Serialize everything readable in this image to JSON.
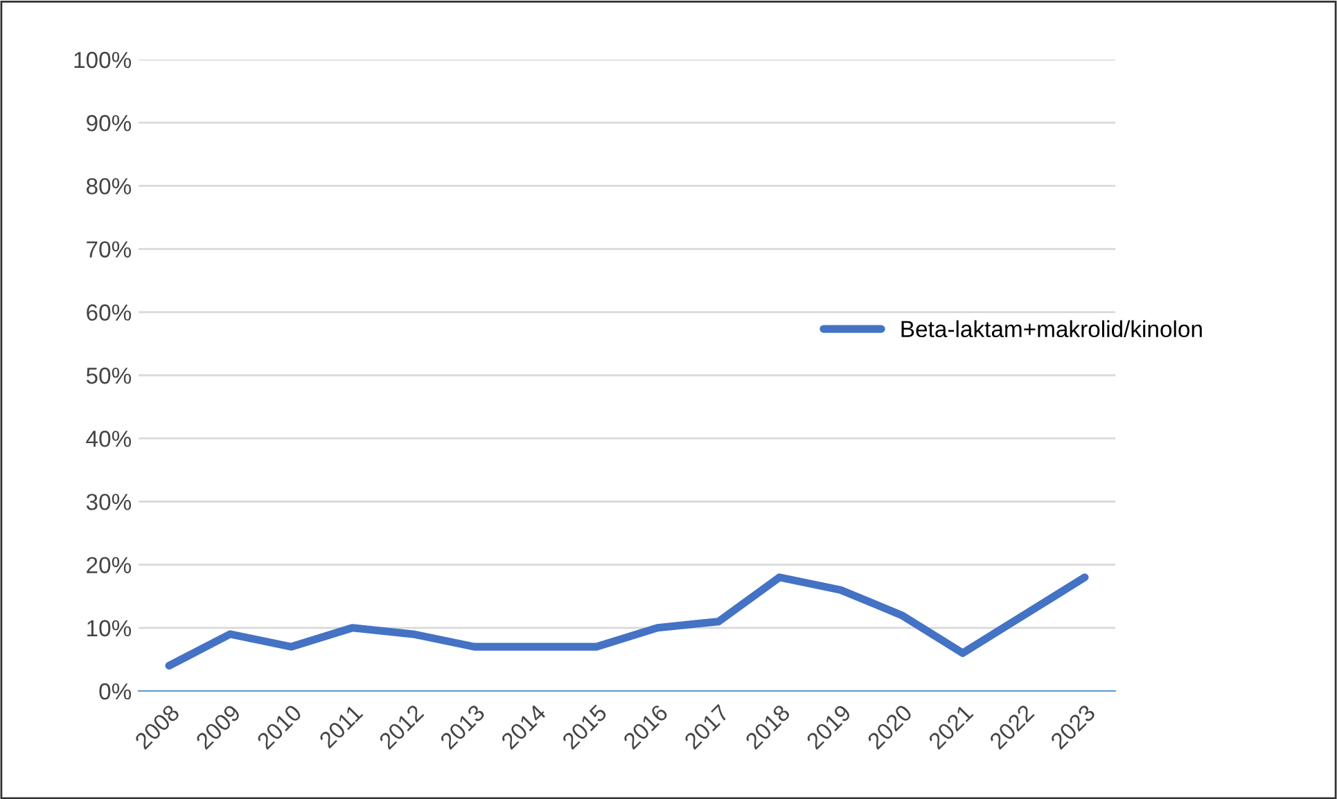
{
  "chart_data": {
    "type": "line",
    "categories": [
      "2008",
      "2009",
      "2010",
      "2011",
      "2012",
      "2013",
      "2014",
      "2015",
      "2016",
      "2017",
      "2018",
      "2019",
      "2020",
      "2021",
      "2022",
      "2023"
    ],
    "series": [
      {
        "name": "Beta-laktam+makrolid/kinolon",
        "color": "#4472c4",
        "values": [
          4,
          9,
          7,
          10,
          9,
          7,
          7,
          7,
          10,
          11,
          18,
          16,
          12,
          6,
          12,
          18
        ]
      }
    ],
    "ylim": [
      0,
      100
    ],
    "yticks": [
      {
        "value": 0,
        "label": "0%"
      },
      {
        "value": 10,
        "label": "10%"
      },
      {
        "value": 20,
        "label": "20%"
      },
      {
        "value": 30,
        "label": "30%"
      },
      {
        "value": 40,
        "label": "40%"
      },
      {
        "value": 50,
        "label": "50%"
      },
      {
        "value": 60,
        "label": "60%"
      },
      {
        "value": 70,
        "label": "70%"
      },
      {
        "value": 80,
        "label": "80%"
      },
      {
        "value": 90,
        "label": "90%"
      },
      {
        "value": 100,
        "label": "100%"
      }
    ],
    "grid": "y",
    "legend": "right",
    "marker": "none",
    "line_style": "solid"
  }
}
